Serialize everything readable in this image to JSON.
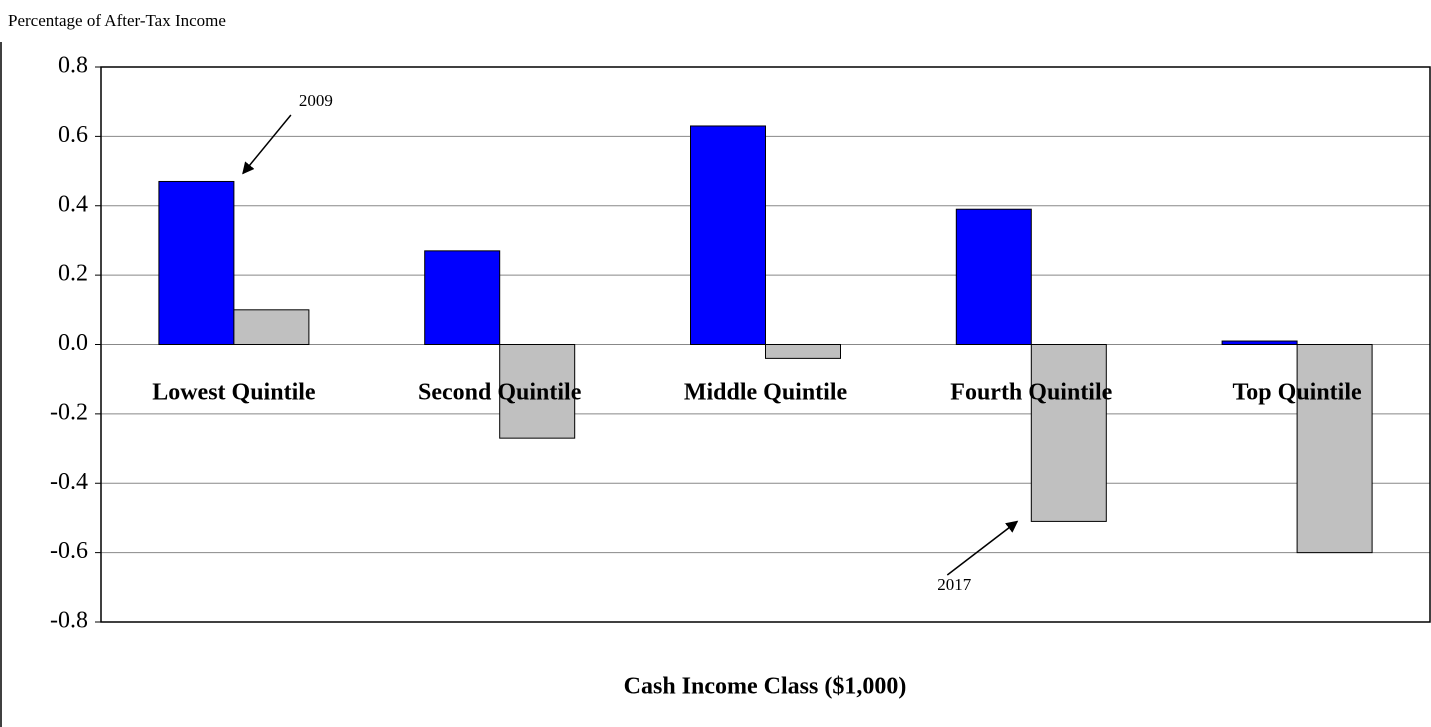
{
  "chart_data": {
    "type": "bar",
    "y_label": "Percentage of After-Tax Income",
    "x_label": "Cash Income Class ($1,000)",
    "categories": [
      "Lowest Quintile",
      "Second Quintile",
      "Middle Quintile",
      "Fourth Quintile",
      "Top Quintile"
    ],
    "series": [
      {
        "name": "2009",
        "color": "#0000ff",
        "values": [
          0.47,
          0.27,
          0.63,
          0.39,
          0.01
        ]
      },
      {
        "name": "2017",
        "color": "#c0c0c0",
        "values": [
          0.1,
          -0.27,
          -0.04,
          -0.51,
          -0.6
        ]
      }
    ],
    "ylim": [
      -0.8,
      0.8
    ],
    "yticks": [
      -0.8,
      -0.6,
      -0.4,
      -0.2,
      {
        "value": 0,
        "label": "0.0"
      },
      0.2,
      0.4,
      0.6,
      0.8
    ],
    "grid": true
  }
}
